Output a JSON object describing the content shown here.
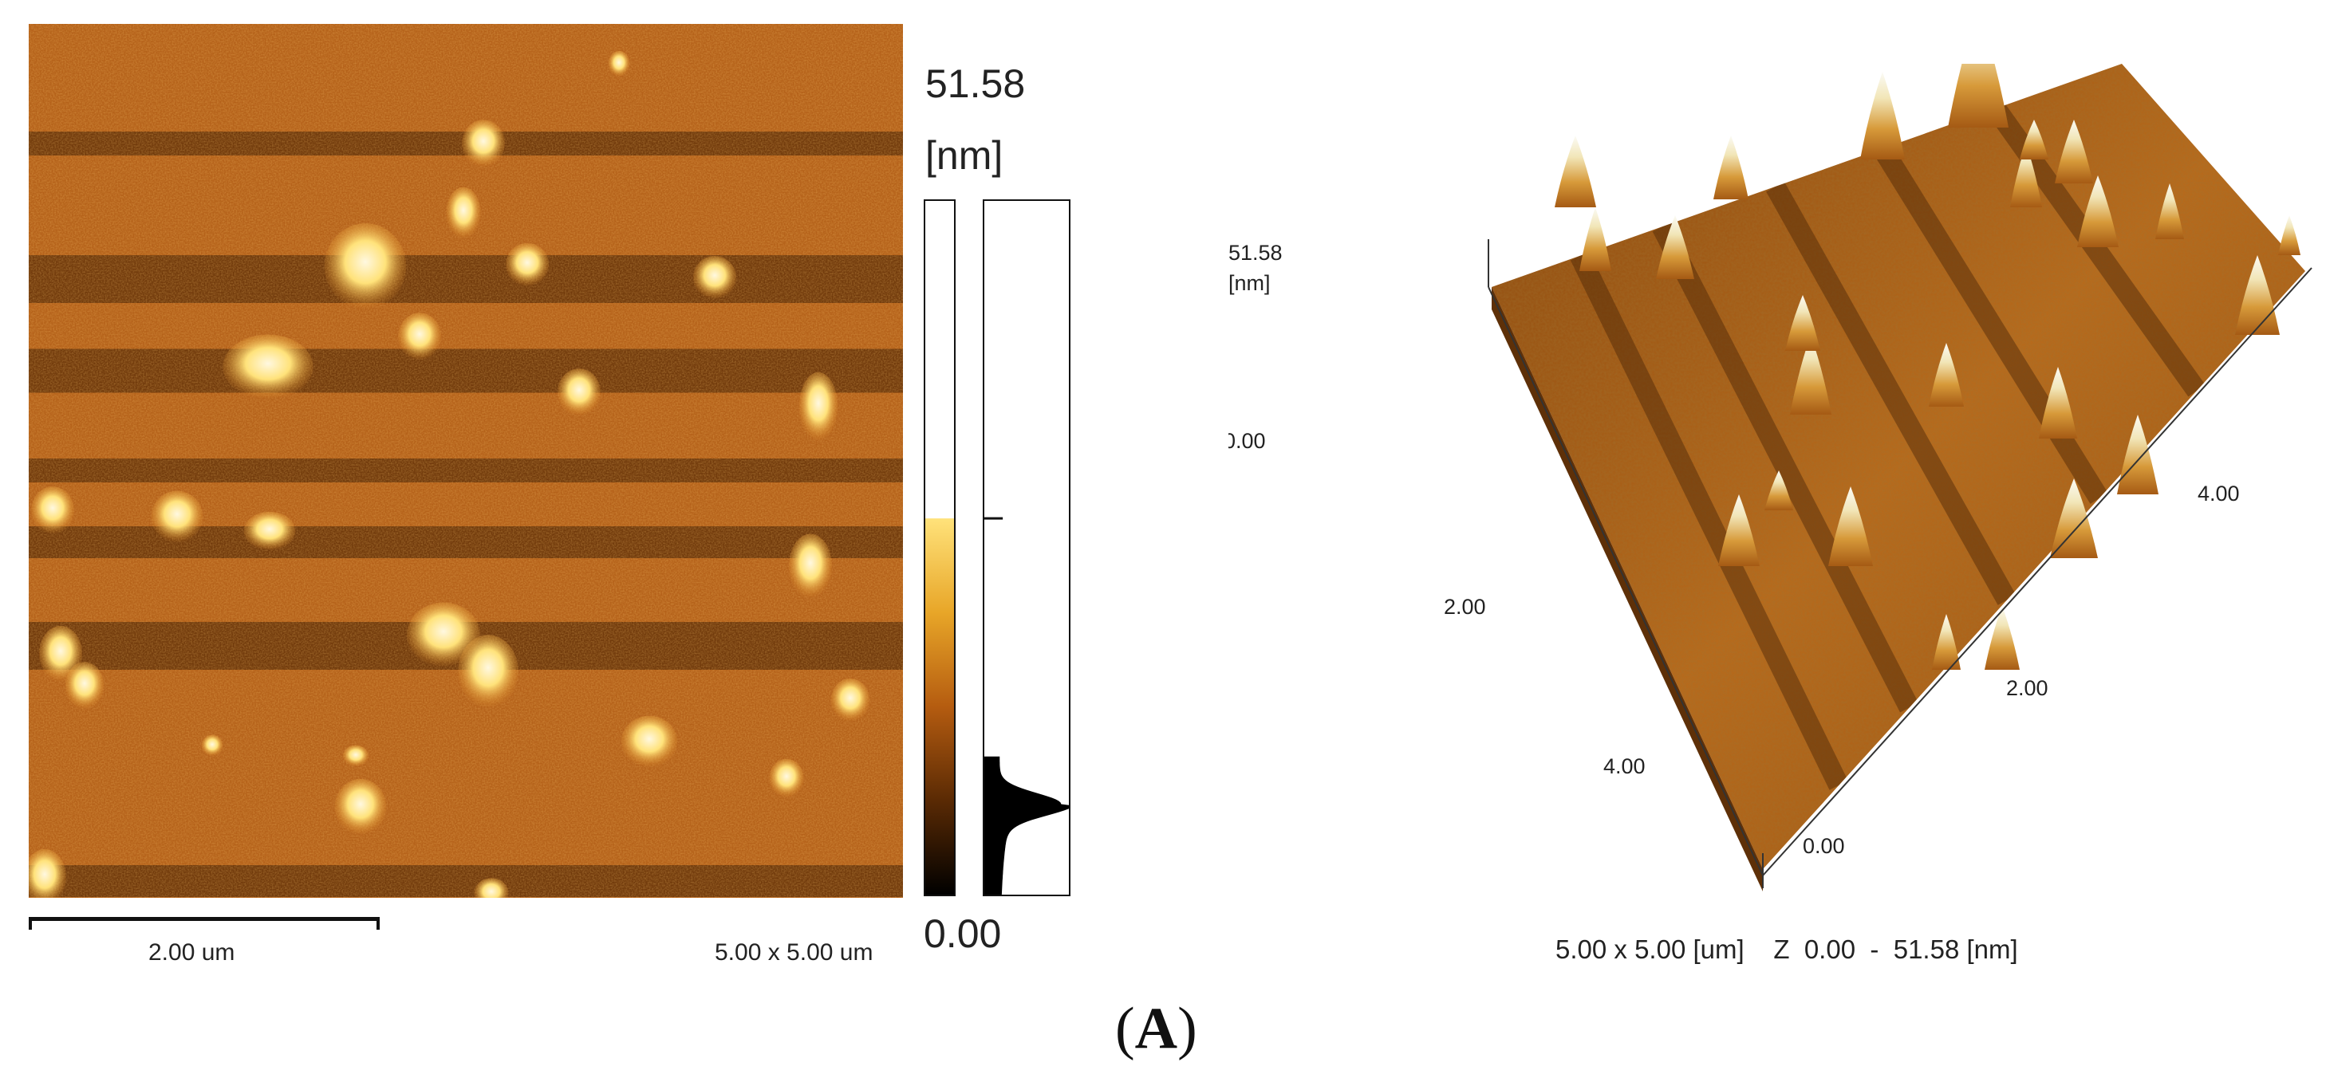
{
  "figure": {
    "panel_letter": "A",
    "paren_open": "(",
    "paren_close": ")"
  },
  "map2d": {
    "scale_bar_label": "2.00 um",
    "scan_size": "5.00 x 5.00 um"
  },
  "color_scale": {
    "max_value": "51.58",
    "unit": "[nm]",
    "min_value": "0.00"
  },
  "view3d": {
    "z_max": "51.58",
    "z_unit": "[nm]",
    "z_min": "0.00",
    "axis_left_ticks": [
      "2.00",
      "4.00"
    ],
    "axis_right_ticks": [
      "2.00",
      "4.00"
    ],
    "corner_origin": "0.00",
    "caption_size": "5.00 x 5.00 [um]",
    "caption_z": "Z  0.00  -  51.58 [nm]"
  },
  "colors": {
    "afm_dark": "#3a1c02",
    "afm_mid": "#b55c10",
    "afm_light": "#e08a26",
    "afm_peak": "#ffe27a",
    "afm_white": "#fff8e0"
  }
}
